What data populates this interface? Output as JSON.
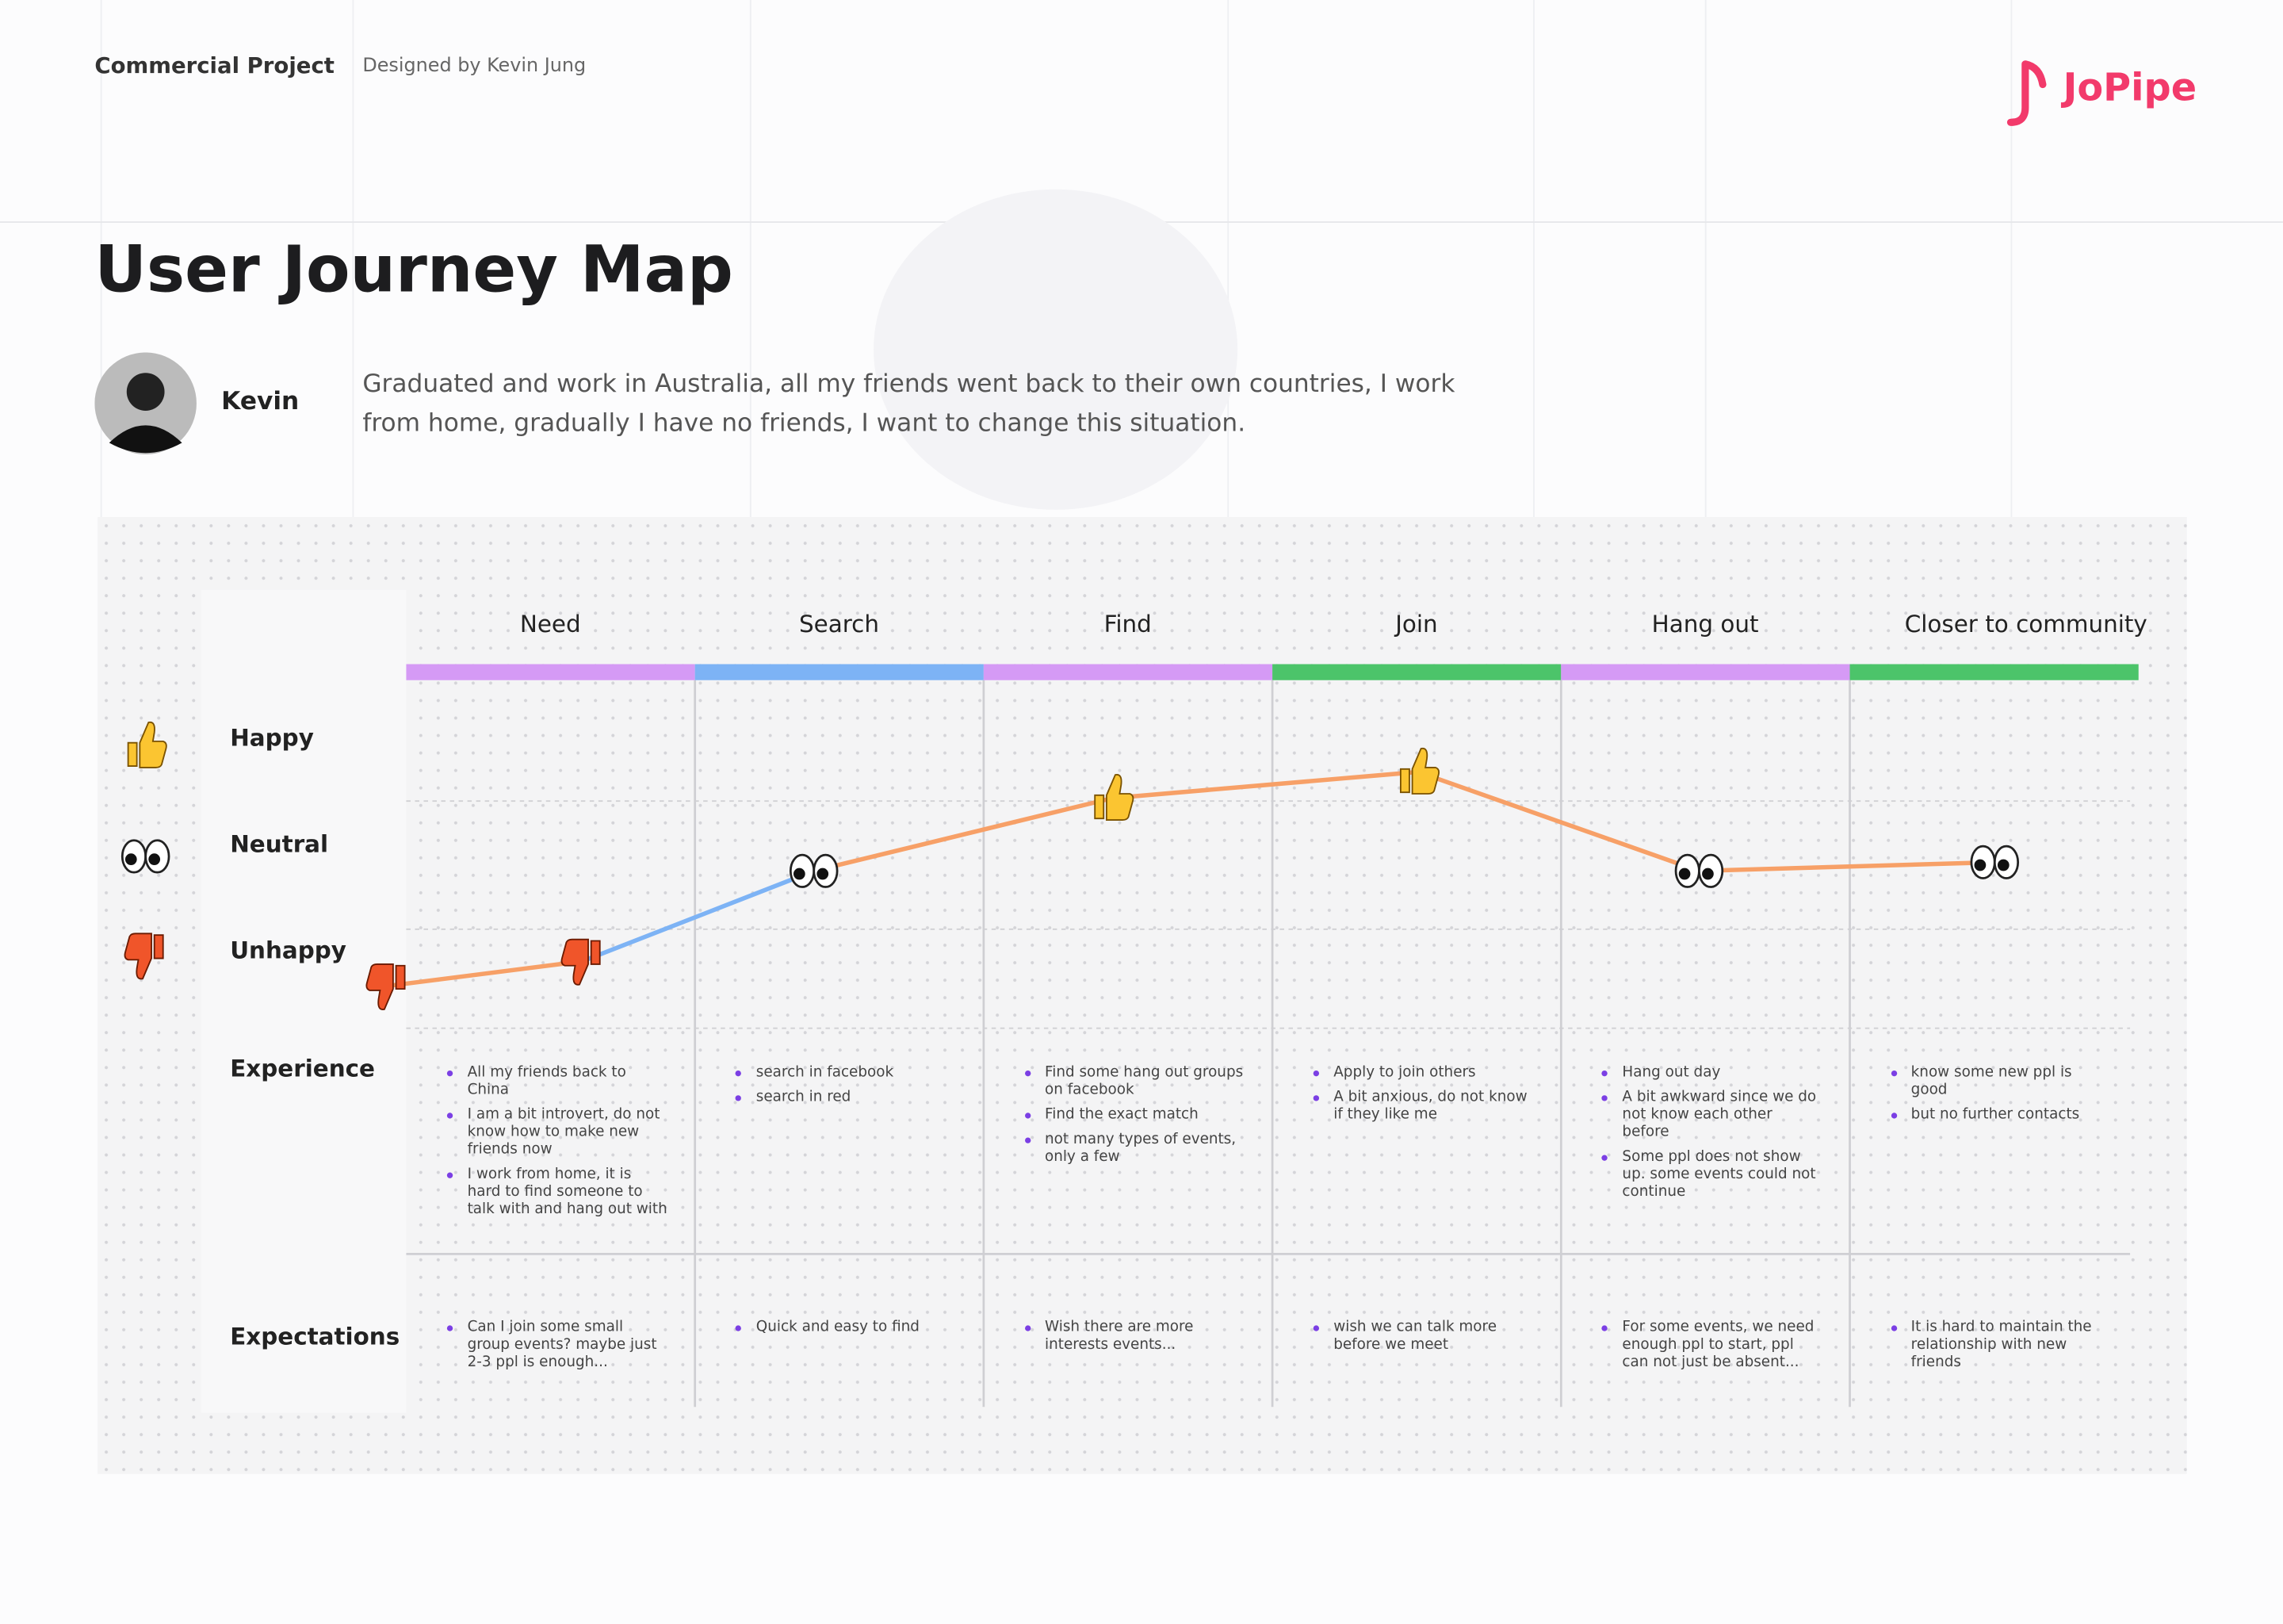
{
  "header": {
    "project": "Commercial Project",
    "designer": "Designed by Kevin Jung",
    "logo": "JoPipe"
  },
  "title": "User Journey Map",
  "persona": {
    "name": "Kevin",
    "quote": "Graduated and work in Australia, all my friends went back to their own countries, I work from home, gradually I have no friends, I want to change this situation."
  },
  "emotions": [
    "Happy",
    "Neutral",
    "Unhappy"
  ],
  "row_labels": [
    "Experience",
    "Expectations"
  ],
  "stages": [
    {
      "name": "Need",
      "color": "#d59af5",
      "experience": [
        "All my friends back to China",
        "I am a bit introvert, do not know how to make new friends now",
        "I work from home, it is hard to find someone to talk with and hang out with"
      ],
      "expectations": [
        "Can I join some small group events? maybe just 2-3 ppl is enough..."
      ]
    },
    {
      "name": "Search",
      "color": "#7db3f5",
      "experience": [
        "search in facebook",
        "search in red"
      ],
      "expectations": [
        "Quick and easy to find"
      ]
    },
    {
      "name": "Find",
      "color": "#d59af5",
      "experience": [
        "Find some hang out groups on facebook",
        "Find the exact match",
        "not many types of events, only a few"
      ],
      "expectations": [
        "Wish there are more interests events..."
      ]
    },
    {
      "name": "Join",
      "color": "#4cc46a",
      "experience": [
        "Apply to join others",
        "A bit anxious, do not know if they like me"
      ],
      "expectations": [
        "wish we can talk more before we meet"
      ]
    },
    {
      "name": "Hang out",
      "color": "#d59af5",
      "experience": [
        "Hang out day",
        "A bit awkward since we do not know each other before",
        "Some ppl does not show up. some events could not continue"
      ],
      "expectations": [
        "For some events, we need enough ppl to start, ppl can not just be absent..."
      ]
    },
    {
      "name": "Closer to community",
      "color": "#4cc46a",
      "experience": [
        "know some new ppl is good",
        "but no further contacts"
      ],
      "expectations": [
        "It is hard to maintain the relationship with new friends"
      ]
    }
  ]
}
